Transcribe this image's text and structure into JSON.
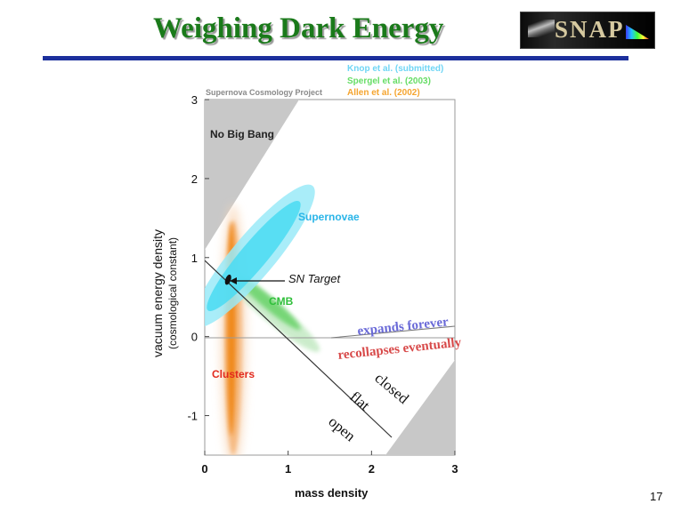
{
  "slide": {
    "title": "Weighing Dark Energy",
    "logo_text": "SNAP",
    "page_number": "17"
  },
  "chart_data": {
    "type": "scatter",
    "attribution": "Supernova Cosmology Project",
    "legend": [
      {
        "label": "Knop et al. (submitted)",
        "color": "#6fd6f5"
      },
      {
        "label": "Spergel et al. (2003)",
        "color": "#66dd66"
      },
      {
        "label": "Allen et al.  (2002)",
        "color": "#f5a530"
      }
    ],
    "xlabel": "mass density",
    "ylabel": "vacuum energy density",
    "ylabel_sub": "(cosmological constant)",
    "xlim": [
      0,
      3
    ],
    "ylim": [
      -1.5,
      3
    ],
    "xticks": [
      "0",
      "1",
      "2",
      "3"
    ],
    "yticks": [
      "3",
      "2",
      "1",
      "0",
      "-1"
    ],
    "xtick_values": [
      0,
      1,
      2,
      3
    ],
    "ytick_values": [
      3,
      2,
      1,
      0,
      -1
    ],
    "regions": {
      "supernovae": {
        "label": "Supernovae",
        "center": [
          0.3,
          0.7
        ],
        "color": "#2ad3f0"
      },
      "cmb": {
        "label": "CMB",
        "center": [
          0.3,
          0.7
        ],
        "color": "#4ccc4c"
      },
      "clusters": {
        "label": "Clusters",
        "center": [
          0.3,
          0.7
        ],
        "color": "#f0861e"
      },
      "no_big_bang": {
        "label": "No Big Bang"
      }
    },
    "annotations": {
      "expands_forever": "expands forever",
      "recollapses": "recollapses eventually",
      "closed": "closed",
      "flat": "flat",
      "open": "open",
      "sn_target": "SN Target"
    },
    "sn_target_point": [
      0.28,
      0.72
    ],
    "colors": {
      "no_big_bang": "#c8c8c8",
      "supernovae": "#2ad3f0",
      "cmb": "#4ccc4c",
      "clusters": "#f0861e",
      "expands": "#6a6ad8",
      "recollapse": "#d84a4a",
      "title": "#1a7a1a",
      "rule": "#1c2f9c"
    }
  }
}
